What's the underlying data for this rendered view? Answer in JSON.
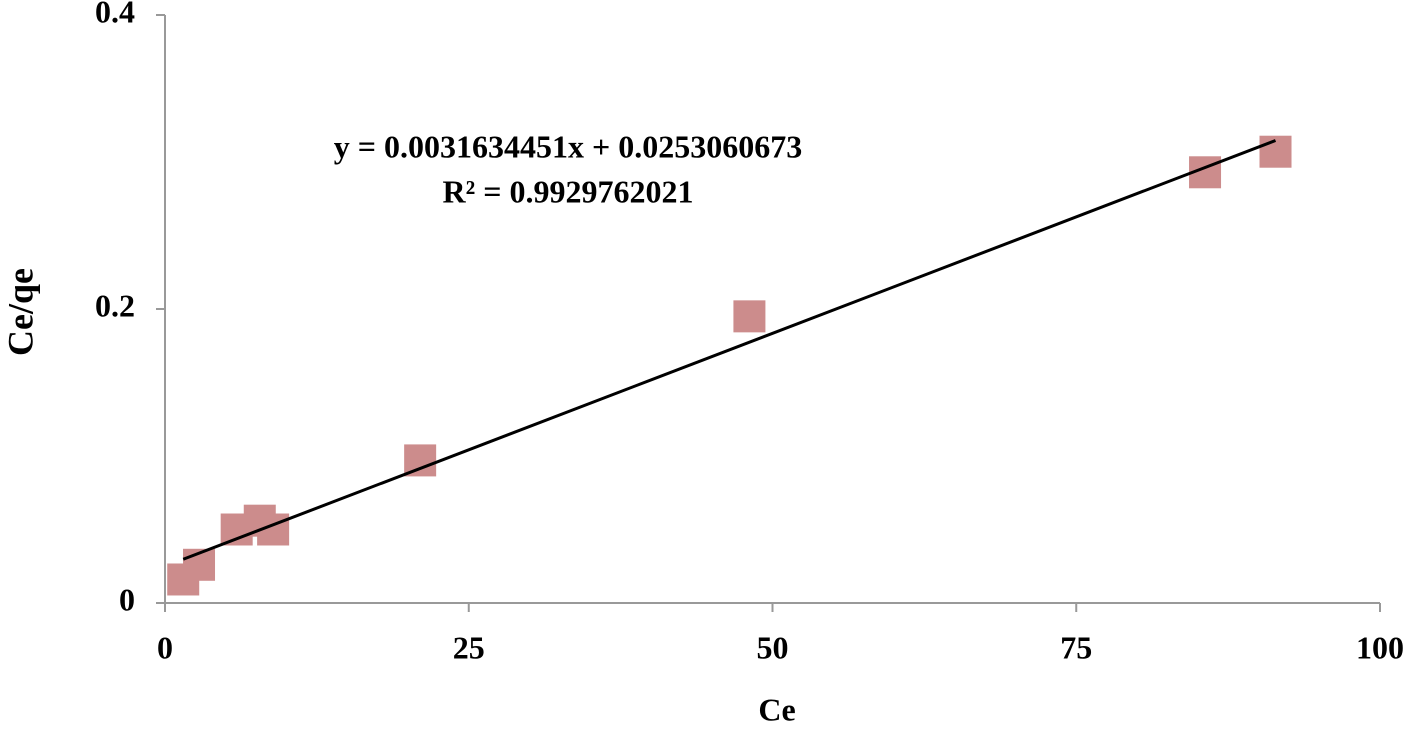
{
  "chart_data": {
    "type": "scatter",
    "x_label": "Ce",
    "y_label": "Ce/qe",
    "series": [
      {
        "name": "Ce/qe",
        "color": "#cc8c8c",
        "x": [
          1.5,
          2.8,
          5.9,
          7.8,
          8.9,
          21.0,
          48.1,
          85.6,
          91.4
        ],
        "values": [
          0.016,
          0.026,
          0.05,
          0.056,
          0.05,
          0.097,
          0.195,
          0.293,
          0.307
        ]
      }
    ],
    "trendline": {
      "color": "#000000",
      "equation": "y = 0.0031634451x + 0.0253060673",
      "r2": "R² = 0.9929762021"
    },
    "xlim": [
      0,
      100
    ],
    "xticks": [
      0,
      25,
      50,
      75,
      100
    ],
    "ylim": [
      0,
      0.4
    ],
    "yticks": [
      0,
      0.2,
      0.4
    ]
  }
}
